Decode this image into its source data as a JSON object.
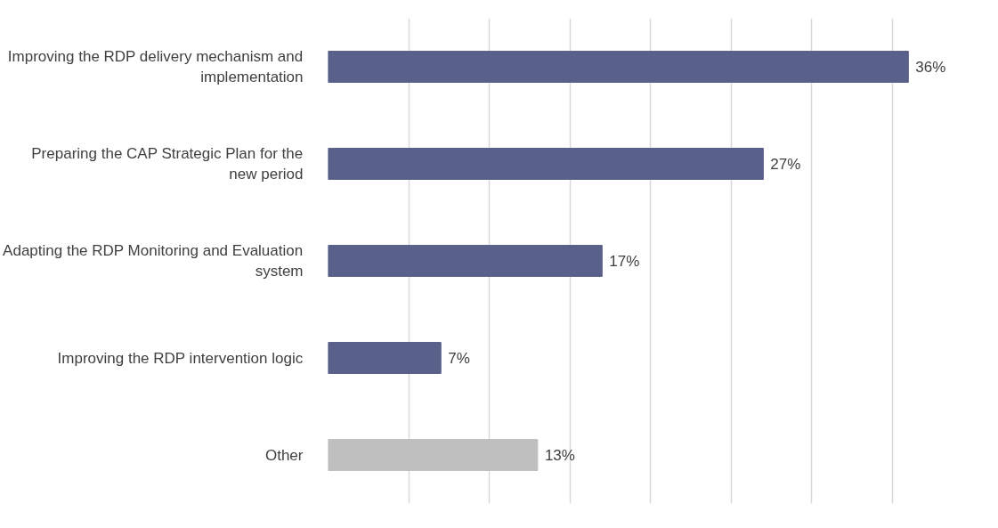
{
  "chart_data": {
    "type": "bar",
    "orientation": "horizontal",
    "categories": [
      "Improving the RDP delivery mechanism and implementation",
      "Preparing the CAP Strategic Plan for the new period",
      "Adapting the RDP Monitoring and Evaluation system",
      "Improving the RDP intervention logic",
      "Other"
    ],
    "values": [
      36,
      27,
      17,
      7,
      13
    ],
    "colors": [
      "#596089",
      "#596089",
      "#596089",
      "#596089",
      "#bfbfbf"
    ],
    "value_labels": [
      "36%",
      "27%",
      "17%",
      "7%",
      "13%"
    ],
    "tick_labels": "y",
    "grid": "x"
  }
}
